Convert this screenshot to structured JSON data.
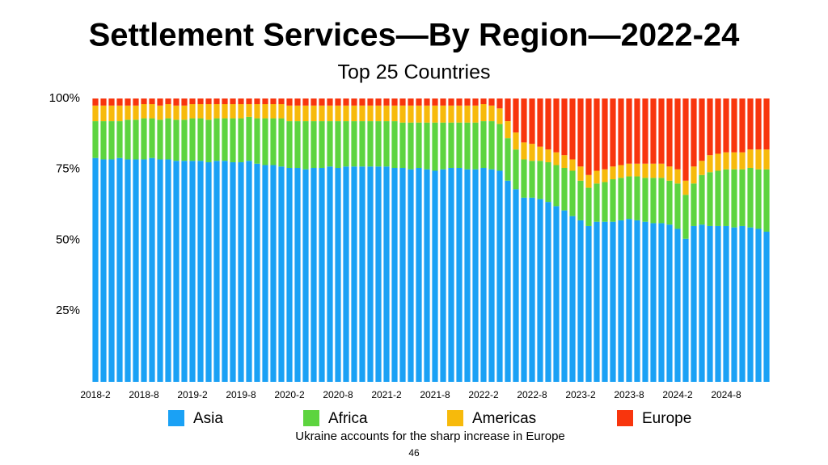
{
  "chart_data": {
    "type": "stacked_bar_100",
    "title": "Settlement Services—By Region—2022-24",
    "subtitle": "Top 25 Countries",
    "annotation": "Ukraine accounts for the sharp increase in Europe",
    "categories": [
      "2018-2",
      null,
      null,
      null,
      null,
      null,
      "2018-8",
      null,
      null,
      null,
      null,
      null,
      "2019-2",
      null,
      null,
      null,
      null,
      null,
      "2019-8",
      null,
      null,
      null,
      null,
      null,
      "2020-2",
      null,
      null,
      null,
      null,
      null,
      "2020-8",
      null,
      null,
      null,
      null,
      null,
      "2021-2",
      null,
      null,
      null,
      null,
      null,
      "2021-8",
      null,
      null,
      null,
      null,
      null,
      "2022-2",
      null,
      null,
      null,
      null,
      null,
      "2022-8",
      null,
      null,
      null,
      null,
      null,
      "2023-2",
      null,
      null,
      null,
      null,
      null,
      "2023-8",
      null,
      null,
      null,
      null,
      null,
      "2024-2",
      null,
      null,
      null,
      null,
      null,
      "2024-8",
      null,
      null,
      null,
      null,
      null
    ],
    "series": [
      {
        "name": "Asia",
        "color": "#1aa1f5",
        "values": [
          79,
          78.5,
          78.5,
          79,
          78.5,
          78.5,
          78.5,
          79,
          78.5,
          78.5,
          78,
          78,
          78,
          78,
          77.5,
          78,
          78,
          77.5,
          77.5,
          78,
          77,
          76.5,
          76.5,
          76,
          75.5,
          75.5,
          75,
          75.5,
          75.5,
          76,
          75.5,
          76,
          76,
          76,
          76,
          76,
          76,
          75.5,
          75.5,
          75,
          75.5,
          75,
          74.5,
          75,
          75.5,
          75.5,
          75,
          75,
          75.5,
          75,
          74.5,
          71,
          68,
          65,
          65,
          64.5,
          63.5,
          62,
          60.5,
          58.5,
          57,
          55,
          56.5,
          56.5,
          56.5,
          57,
          57.5,
          57,
          56.5,
          56,
          56,
          55.5,
          54,
          50.5,
          55,
          55.5,
          55,
          55,
          55,
          54.5,
          55,
          54.5,
          54,
          53
        ]
      },
      {
        "name": "Africa",
        "color": "#5dd43f",
        "values": [
          13,
          13.5,
          13.5,
          13,
          14,
          14,
          14.5,
          14,
          14,
          14.5,
          14.5,
          14.5,
          15,
          15,
          15,
          15,
          15,
          15.5,
          15.5,
          15.5,
          16,
          16.5,
          16.5,
          17,
          16.5,
          16.5,
          17,
          16.5,
          16.5,
          16,
          16.5,
          16,
          16,
          16,
          16,
          16,
          16,
          16.5,
          16,
          16.5,
          16,
          16.5,
          17,
          16.5,
          16,
          16,
          16.5,
          16.5,
          16.5,
          17,
          16.5,
          15,
          14,
          13.5,
          13,
          13.5,
          14,
          14.5,
          15,
          16,
          14,
          13.5,
          13.5,
          14,
          15,
          15,
          15,
          15.5,
          15.5,
          16,
          16,
          15.5,
          16,
          15.5,
          15,
          17.5,
          19,
          19.5,
          20,
          20.5,
          20,
          21,
          21,
          22
        ]
      },
      {
        "name": "Americas",
        "color": "#f7ba0b",
        "values": [
          5.5,
          5.5,
          5.5,
          5.5,
          5,
          5,
          5,
          5,
          5,
          5,
          5,
          5,
          5,
          5,
          5.5,
          5,
          5,
          5,
          5,
          4.5,
          5,
          5,
          5,
          5,
          5.5,
          5.5,
          5.5,
          5.5,
          5.5,
          5.5,
          5.5,
          5.5,
          5.5,
          5.5,
          5.5,
          5.5,
          5.5,
          5.5,
          6,
          6,
          6,
          6,
          6,
          6,
          6,
          6,
          6,
          6,
          6,
          5.5,
          5.5,
          6,
          6,
          6,
          6,
          5,
          4.5,
          4.5,
          4.5,
          4,
          5,
          4.5,
          4.5,
          4.5,
          4.5,
          4.5,
          4.5,
          4.5,
          5,
          5,
          5,
          5,
          5,
          5,
          6,
          5,
          6,
          6,
          6,
          6,
          6,
          6.5,
          7,
          7
        ]
      },
      {
        "name": "Europe",
        "color": "#f8350d",
        "values": [
          2.5,
          2.5,
          2.5,
          2.5,
          2.5,
          2.5,
          2,
          2,
          2.5,
          2,
          2.5,
          2.5,
          2,
          2,
          2,
          2,
          2,
          2,
          2,
          2,
          2,
          2,
          2,
          2,
          2.5,
          2.5,
          2.5,
          2.5,
          2.5,
          2.5,
          2.5,
          2.5,
          2.5,
          2.5,
          2.5,
          2.5,
          2.5,
          2.5,
          2.5,
          2.5,
          2.5,
          2.5,
          2.5,
          2.5,
          2.5,
          2.5,
          2.5,
          2.5,
          2,
          2.5,
          3.5,
          8,
          12,
          15.5,
          16,
          17,
          18,
          19,
          20,
          21.5,
          24,
          27,
          25.5,
          25,
          24,
          23.5,
          23,
          23,
          23,
          23,
          23,
          24,
          25,
          29,
          24,
          22,
          20,
          19.5,
          19,
          19,
          19,
          18,
          18,
          18
        ]
      }
    ],
    "ylim": [
      0,
      100
    ],
    "yticks": [
      {
        "value": 25,
        "label": "25%"
      },
      {
        "value": 50,
        "label": "50%"
      },
      {
        "value": 75,
        "label": "75%"
      },
      {
        "value": 100,
        "label": "100%"
      }
    ],
    "grid": false
  },
  "slide_number": "46"
}
